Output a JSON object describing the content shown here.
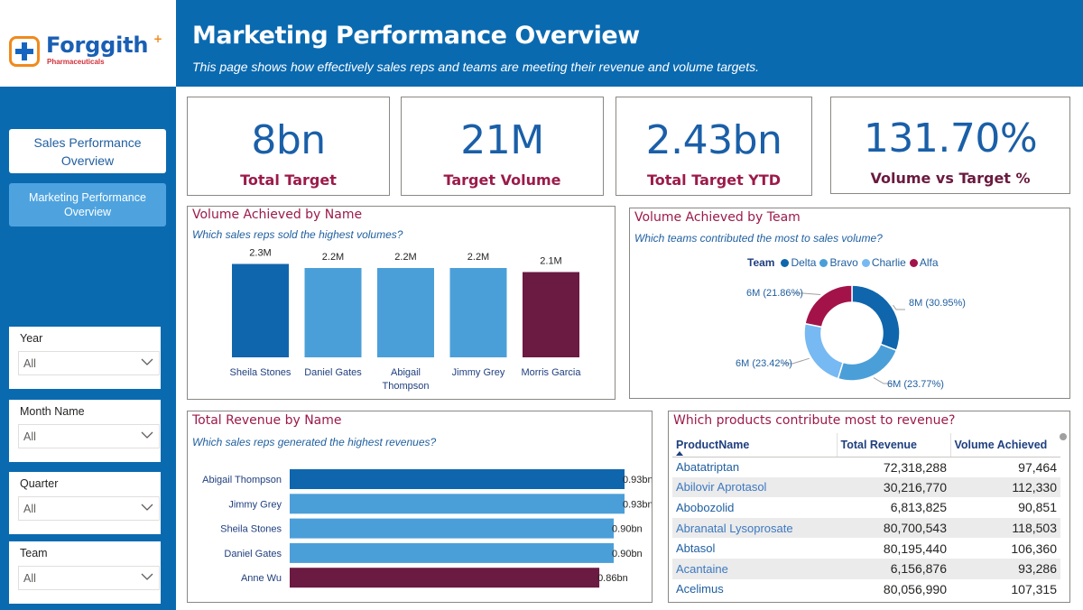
{
  "logo": {
    "name": "Forggith",
    "sub": "Pharmaceuticals"
  },
  "header": {
    "title": "Marketing Performance Overview",
    "subtitle": "This page shows how effectively sales reps and teams are meeting their revenue and volume targets."
  },
  "nav": {
    "items": [
      {
        "label": "Sales Performance Overview",
        "active": false
      },
      {
        "label": "Marketing Performance Overview",
        "active": true
      }
    ]
  },
  "filters": [
    {
      "label": "Year",
      "value": "All"
    },
    {
      "label": "Month Name",
      "value": "All"
    },
    {
      "label": "Quarter",
      "value": "All"
    },
    {
      "label": "Team",
      "value": "All"
    }
  ],
  "kpis": [
    {
      "value": "8bn",
      "label": "Total Target"
    },
    {
      "value": "21M",
      "label": "Target Volume"
    },
    {
      "value": "2.43bn",
      "label": "Total Target YTD"
    },
    {
      "value": "131.70%",
      "label": "Volume vs Target %"
    }
  ],
  "colors": {
    "primary": "#0a6ab0",
    "bar_dark": "#0f66ad",
    "bar_light": "#4b9fd8",
    "bar_highlight": "#6b1a42",
    "accent_title": "#9c1a4a",
    "delta": "#0f66ad",
    "bravo": "#4b9fd8",
    "charlie": "#77b9f2",
    "alfa": "#a3134a"
  },
  "volume_by_name": {
    "title": "Volume Achieved by Name",
    "subtitle": "Which sales reps sold the highest volumes?"
  },
  "volume_by_team": {
    "title": "Volume Achieved by Team",
    "subtitle": "Which teams contributed the most to sales volume?",
    "legend_title": "Team"
  },
  "revenue_by_name": {
    "title": "Total Revenue by Name",
    "subtitle": "Which sales reps generated the highest revenues?"
  },
  "products": {
    "title": "Which products contribute most to revenue?",
    "columns": [
      "ProductName",
      "Total Revenue",
      "Volume Achieved"
    ],
    "rows": [
      {
        "name": "Abatatriptan",
        "revenue": "72,318,288",
        "volume": "97,464"
      },
      {
        "name": "Abilovir Aprotasol",
        "revenue": "30,216,770",
        "volume": "112,330"
      },
      {
        "name": "Abobozolid",
        "revenue": "6,813,825",
        "volume": "90,851"
      },
      {
        "name": "Abranatal Lysoprosate",
        "revenue": "80,700,543",
        "volume": "118,503"
      },
      {
        "name": "Abtasol",
        "revenue": "80,195,440",
        "volume": "106,360"
      },
      {
        "name": "Acantaine",
        "revenue": "6,156,876",
        "volume": "93,286"
      },
      {
        "name": "Acelimus",
        "revenue": "80,056,990",
        "volume": "107,315"
      }
    ]
  },
  "chart_data": [
    {
      "type": "bar",
      "title": "Volume Achieved by Name",
      "categories": [
        "Sheila Stones",
        "Daniel Gates",
        "Abigail Thompson",
        "Jimmy Grey",
        "Morris Garcia"
      ],
      "values": [
        2.3,
        2.2,
        2.2,
        2.2,
        2.1
      ],
      "data_labels": [
        "2.3M",
        "2.2M",
        "2.2M",
        "2.2M",
        "2.1M"
      ],
      "unit": "M",
      "ylim": [
        0,
        2.4
      ]
    },
    {
      "type": "pie",
      "title": "Volume Achieved by Team",
      "categories": [
        "Delta",
        "Bravo",
        "Charlie",
        "Alfa"
      ],
      "values": [
        30.95,
        23.77,
        23.42,
        21.86
      ],
      "data_labels": [
        "8M (30.95%)",
        "6M (23.77%)",
        "6M (23.42%)",
        "6M (21.86%)"
      ],
      "legend": "top"
    },
    {
      "type": "bar",
      "orientation": "horizontal",
      "title": "Total Revenue by Name",
      "categories": [
        "Abigail Thompson",
        "Jimmy Grey",
        "Sheila Stones",
        "Daniel Gates",
        "Anne Wu"
      ],
      "values": [
        0.93,
        0.93,
        0.9,
        0.9,
        0.86
      ],
      "data_labels": [
        "0.93bn",
        "0.93bn",
        "0.90bn",
        "0.90bn",
        "0.86bn"
      ],
      "unit": "bn",
      "xlim": [
        0,
        0.93
      ]
    }
  ]
}
